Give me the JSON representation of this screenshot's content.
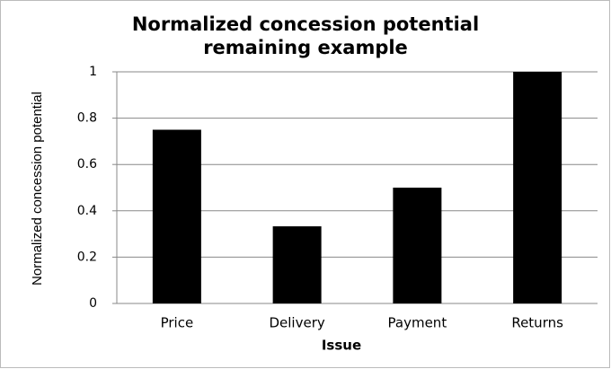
{
  "chart_data": {
    "type": "bar",
    "title": "Normalized concession potential remaining example",
    "x_label": "Issue",
    "y_label": "Normalized concession potential",
    "categories": [
      "Price",
      "Delivery",
      "Payment",
      "Returns"
    ],
    "values": [
      0.75,
      0.333,
      0.5,
      1
    ],
    "color": "#000000",
    "ylim": [
      0,
      1
    ],
    "yticks": [
      0,
      0.2,
      0.4,
      0.6,
      0.8,
      1
    ],
    "grid": true
  }
}
